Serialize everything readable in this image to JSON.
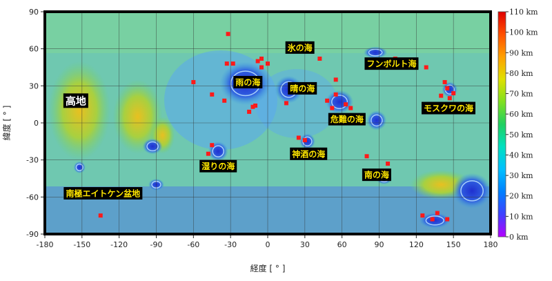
{
  "axes": {
    "x_label": "経度 [ ° ]",
    "y_label": "緯度 [ ° ]",
    "x_ticks": [
      "-180",
      "-150",
      "-120",
      "-90",
      "-60",
      "-30",
      "0",
      "30",
      "60",
      "90",
      "120",
      "150",
      "180"
    ],
    "y_ticks": [
      "90",
      "60",
      "30",
      "0",
      "-30",
      "-60",
      "-90"
    ],
    "x_range": [
      -180,
      180
    ],
    "y_range": [
      -90,
      90
    ]
  },
  "colorbar": {
    "ticks": [
      "110 km",
      "100 km",
      "90 km",
      "80 km",
      "70 km",
      "60 km",
      "50 km",
      "40 km",
      "30 km",
      "20 km",
      "10 km",
      "0 km"
    ],
    "range": [
      0,
      110
    ],
    "colors": [
      "#b400ff",
      "#4040ff",
      "#0080ff",
      "#00c0ff",
      "#00e0c0",
      "#20d060",
      "#80e020",
      "#e0e000",
      "#ffa000",
      "#ff5000",
      "#e00000"
    ]
  },
  "labels": [
    {
      "id": "kouchi",
      "text": "高地",
      "lon": -155,
      "lat": 18,
      "big": true
    },
    {
      "id": "koori",
      "text": "氷の海",
      "lon": 26,
      "lat": 61
    },
    {
      "id": "humboldt",
      "text": "フンボルト海",
      "lon": 100,
      "lat": 48
    },
    {
      "id": "ame",
      "text": "雨の海",
      "lon": -16,
      "lat": 33
    },
    {
      "id": "hare",
      "text": "晴の海",
      "lon": 28,
      "lat": 28
    },
    {
      "id": "moscow",
      "text": "モスクワの海",
      "lon": 146,
      "lat": 12
    },
    {
      "id": "kinan",
      "text": "危難の海",
      "lon": 64,
      "lat": 3
    },
    {
      "id": "shinshu",
      "text": "神酒の海",
      "lon": 33,
      "lat": -25
    },
    {
      "id": "shimeri",
      "text": "湿りの海",
      "lon": -40,
      "lat": -35
    },
    {
      "id": "minami",
      "text": "南の海",
      "lon": 88,
      "lat": -42
    },
    {
      "id": "spa",
      "text": "南極エイトケン盆地",
      "lon": -133,
      "lat": -57
    }
  ],
  "markers": [
    [
      -32,
      72
    ],
    [
      -33,
      48
    ],
    [
      -28,
      48
    ],
    [
      -8,
      50
    ],
    [
      -5,
      45
    ],
    [
      42,
      52
    ],
    [
      103,
      52
    ],
    [
      -60,
      33
    ],
    [
      -45,
      23
    ],
    [
      -35,
      18
    ],
    [
      -15,
      9
    ],
    [
      -10,
      14
    ],
    [
      -12,
      13
    ],
    [
      15,
      16
    ],
    [
      25,
      -12
    ],
    [
      30,
      -14
    ],
    [
      48,
      18
    ],
    [
      52,
      12
    ],
    [
      55,
      23
    ],
    [
      55,
      35
    ],
    [
      63,
      15
    ],
    [
      67,
      12
    ],
    [
      143,
      33
    ],
    [
      145,
      28
    ],
    [
      140,
      22
    ],
    [
      147,
      20
    ],
    [
      150,
      24
    ],
    [
      80,
      -27
    ],
    [
      97,
      -33
    ],
    [
      -45,
      -18
    ],
    [
      -48,
      -25
    ],
    [
      -135,
      -75
    ],
    [
      125,
      -75
    ],
    [
      133,
      -78
    ],
    [
      137,
      -73
    ],
    [
      145,
      -78
    ],
    [
      128,
      45
    ],
    [
      -5,
      52
    ],
    [
      0,
      48
    ]
  ],
  "maria": [
    {
      "lon": -18,
      "lat": 32,
      "rx": 13,
      "ry": 11
    },
    {
      "lon": 17,
      "lat": 27,
      "rx": 7,
      "ry": 7
    },
    {
      "lon": 58,
      "lat": 17,
      "rx": 7,
      "ry": 6
    },
    {
      "lon": -40,
      "lat": -23,
      "rx": 5,
      "ry": 5
    },
    {
      "lon": 32,
      "lat": -15,
      "rx": 4,
      "ry": 4
    },
    {
      "lon": 87,
      "lat": 57,
      "rx": 6,
      "ry": 3
    },
    {
      "lon": 147,
      "lat": 27,
      "rx": 4,
      "ry": 4
    },
    {
      "lon": 88,
      "lat": 2,
      "rx": 5,
      "ry": 5
    },
    {
      "lon": -93,
      "lat": -19,
      "rx": 5,
      "ry": 4
    },
    {
      "lon": -90,
      "lat": -50,
      "rx": 4,
      "ry": 3
    },
    {
      "lon": -152,
      "lat": -36,
      "rx": 3,
      "ry": 3
    },
    {
      "lon": 94,
      "lat": -45,
      "rx": 4,
      "ry": 3
    },
    {
      "lon": 135,
      "lat": -79,
      "rx": 8,
      "ry": 4
    },
    {
      "lon": 165,
      "lat": -55,
      "rx": 10,
      "ry": 9
    }
  ],
  "highland": [
    {
      "lon": -152,
      "lat": 10,
      "rx": 25,
      "ry": 40
    },
    {
      "lon": -105,
      "lat": 5,
      "rx": 20,
      "ry": 30
    },
    {
      "lon": -85,
      "lat": -10,
      "rx": 10,
      "ry": 15
    },
    {
      "lon": 140,
      "lat": -50,
      "rx": 25,
      "ry": 12
    }
  ]
}
